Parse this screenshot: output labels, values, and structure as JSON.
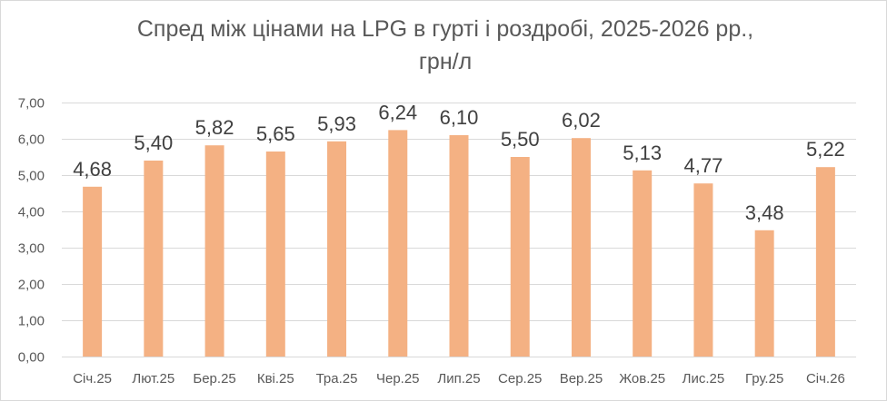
{
  "chart_data": {
    "type": "bar",
    "title_line1": "Спред між цінами на LPG в гурті і роздробі, 2025-2026 рр.,",
    "title_line2": "грн/л",
    "categories": [
      "Січ.25",
      "Лют.25",
      "Бер.25",
      "Кві.25",
      "Тра.25",
      "Чер.25",
      "Лип.25",
      "Сер.25",
      "Вер.25",
      "Жов.25",
      "Лис.25",
      "Гру.25",
      "Січ.26"
    ],
    "values": [
      4.68,
      5.4,
      5.82,
      5.65,
      5.93,
      6.24,
      6.1,
      5.5,
      6.02,
      5.13,
      4.77,
      3.48,
      5.22
    ],
    "data_labels": [
      "4,68",
      "5,40",
      "5,82",
      "5,65",
      "5,93",
      "6,24",
      "6,10",
      "5,50",
      "6,02",
      "5,13",
      "4,77",
      "3,48",
      "5,22"
    ],
    "y_ticks": [
      0,
      1,
      2,
      3,
      4,
      5,
      6,
      7
    ],
    "y_tick_labels": [
      "0,00",
      "1,00",
      "2,00",
      "3,00",
      "4,00",
      "5,00",
      "6,00",
      "7,00"
    ],
    "ylim": [
      0,
      7
    ],
    "xlabel": "",
    "ylabel": "",
    "grid": true,
    "legend": "none",
    "bar_color": "#f4b183",
    "grid_color": "#d9d9d9"
  }
}
